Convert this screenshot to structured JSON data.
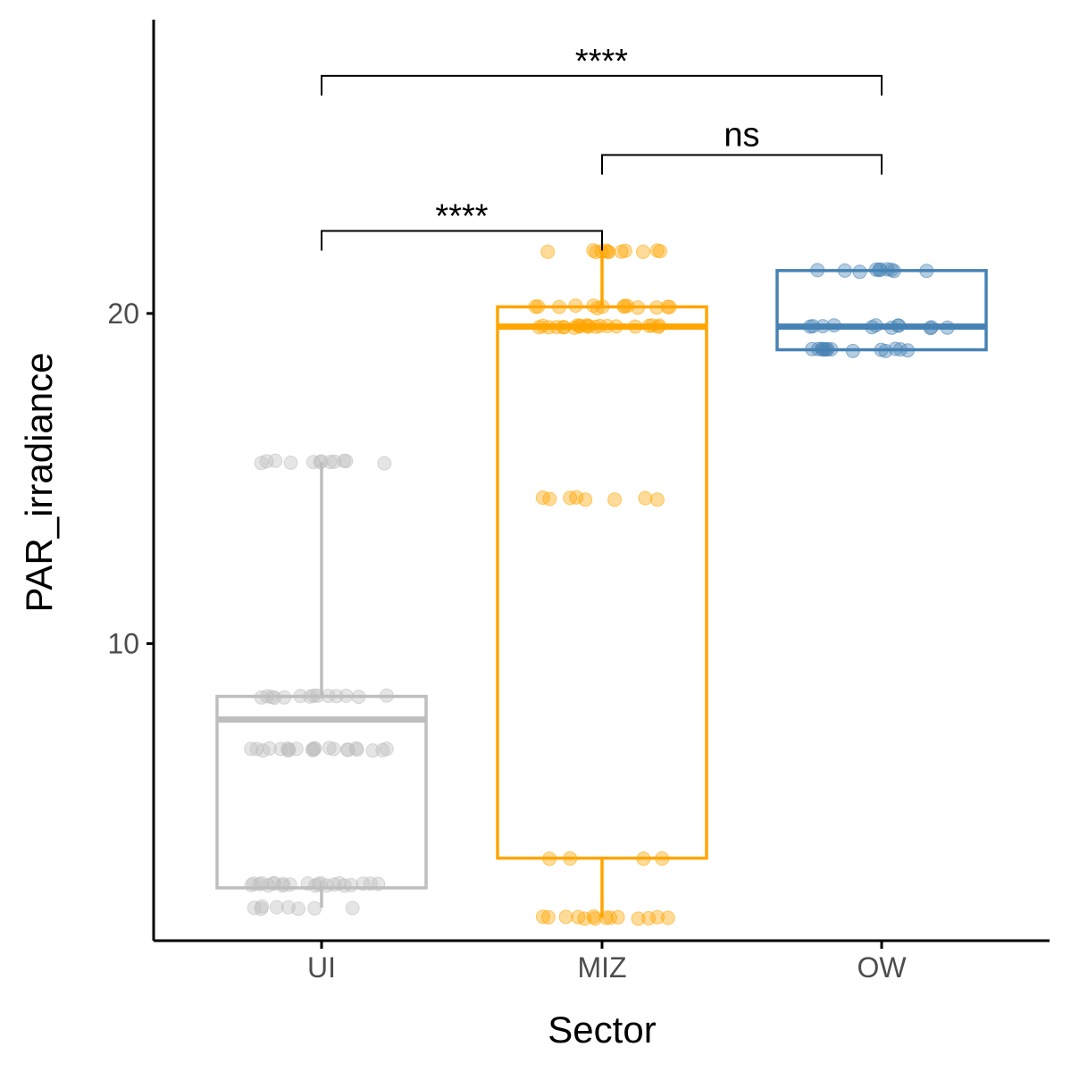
{
  "chart_data": {
    "type": "boxplot",
    "xlabel": "Sector",
    "ylabel": "PAR_irradiance",
    "categories": [
      "UI",
      "MIZ",
      "OW"
    ],
    "yticks": [
      10,
      20
    ],
    "ylim": [
      1.0,
      28.9
    ],
    "grid": false,
    "legend": "none",
    "series": [
      {
        "category": "UI",
        "color": "#bebebe",
        "box": {
          "min": 2.0,
          "q1": 2.6,
          "median": 7.7,
          "q3": 8.4,
          "max": 15.5
        },
        "points": [
          {
            "y": 15.5,
            "n": 12
          },
          {
            "y": 8.4,
            "n": 14
          },
          {
            "y": 6.8,
            "n": 22
          },
          {
            "y": 2.7,
            "n": 22
          },
          {
            "y": 2.0,
            "n": 8
          }
        ]
      },
      {
        "category": "MIZ",
        "color": "#ffa500",
        "box": {
          "min": 1.7,
          "q1": 3.5,
          "median": 19.6,
          "q3": 20.2,
          "max": 21.9
        },
        "points": [
          {
            "y": 21.9,
            "n": 12
          },
          {
            "y": 20.2,
            "n": 14
          },
          {
            "y": 19.6,
            "n": 22
          },
          {
            "y": 14.4,
            "n": 8
          },
          {
            "y": 3.5,
            "n": 4
          },
          {
            "y": 1.7,
            "n": 14
          }
        ]
      },
      {
        "category": "OW",
        "color": "#4682b4",
        "box": {
          "min": 18.9,
          "q1": 18.9,
          "median": 19.6,
          "q3": 21.3,
          "max": 21.3
        },
        "points": [
          {
            "y": 21.3,
            "n": 10
          },
          {
            "y": 19.6,
            "n": 12
          },
          {
            "y": 18.9,
            "n": 14
          }
        ]
      }
    ],
    "comparisons": [
      {
        "from": "UI",
        "to": "MIZ",
        "y": 22.5,
        "label": "****"
      },
      {
        "from": "MIZ",
        "to": "OW",
        "y": 24.8,
        "label": "ns"
      },
      {
        "from": "UI",
        "to": "OW",
        "y": 27.2,
        "label": "****"
      }
    ]
  }
}
